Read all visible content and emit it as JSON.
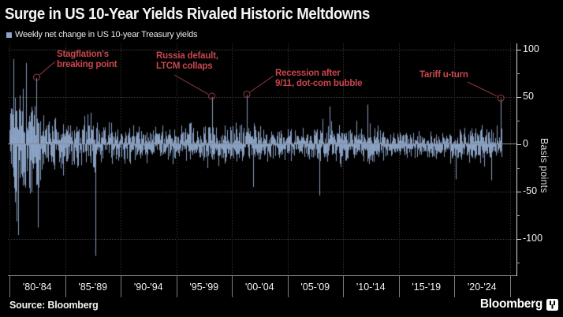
{
  "header": {
    "title": "Surge in US 10-Year Yields Rivaled Historic Meltdowns",
    "legend_label": "Weekly net change in US 10-year Treasury yields"
  },
  "chart_data": {
    "type": "bar",
    "title": "Surge in US 10-Year Yields Rivaled Historic Meltdowns",
    "series_name": "Weekly net change in US 10-year Treasury yields",
    "frequency": "weekly",
    "unit": "basis points",
    "y_axis_label": "Basis points",
    "y_ticks": [
      100,
      50,
      0,
      -50,
      -100
    ],
    "y_minor_ticks": [
      75,
      25,
      -25,
      -75,
      -125
    ],
    "ylim": [
      -140,
      106
    ],
    "x_range": [
      1980,
      2025
    ],
    "x_tick_labels": [
      "'80-'84",
      "'85-'89",
      "'90-'94",
      "'95-'99",
      "'00-'04",
      "'05-'09",
      "'10-'14",
      "'15-'19",
      "'20-'24"
    ],
    "grid": "dotted horizontal at 100/50/-50/-100, solid zero line, dotted vertical at 5-year boundaries",
    "legend_position": "top-left",
    "bar_color": "#8BA3C6",
    "annotation_text_color": "#C9474C",
    "annotation_line_color": "#96393E",
    "grid_color": "#3D3D3D",
    "axis_color": "#DCDCDC",
    "background_color": "#000000",
    "volatility_envelope_bp": [
      [
        1980,
        88
      ],
      [
        1981,
        84
      ],
      [
        1982,
        74
      ],
      [
        1983,
        46
      ],
      [
        1984,
        42
      ],
      [
        1985,
        38
      ],
      [
        1986,
        36
      ],
      [
        1987,
        48
      ],
      [
        1988,
        32
      ],
      [
        1990,
        30
      ],
      [
        1994,
        28
      ],
      [
        1998,
        30
      ],
      [
        2000,
        33
      ],
      [
        2002,
        32
      ],
      [
        2004,
        24
      ],
      [
        2007,
        22
      ],
      [
        2008,
        40
      ],
      [
        2009,
        36
      ],
      [
        2010,
        28
      ],
      [
        2013,
        28
      ],
      [
        2014,
        24
      ],
      [
        2016,
        20
      ],
      [
        2019,
        20
      ],
      [
        2020,
        32
      ],
      [
        2021,
        22
      ],
      [
        2022,
        34
      ],
      [
        2023,
        32
      ],
      [
        2024,
        27
      ],
      [
        2024.3,
        26
      ]
    ],
    "notable_spikes_bp": [
      [
        1980.35,
        90
      ],
      [
        1980.8,
        -96
      ],
      [
        1981.5,
        86
      ],
      [
        1982.45,
        70
      ],
      [
        1982.55,
        -88
      ],
      [
        1987.75,
        -118
      ],
      [
        1998.2,
        50
      ],
      [
        2001.35,
        52
      ],
      [
        2001.9,
        -45
      ],
      [
        2007.85,
        -54
      ],
      [
        2008.8,
        40
      ],
      [
        2012.2,
        42
      ],
      [
        2020.15,
        -37
      ],
      [
        2023.3,
        -38
      ],
      [
        2024.2,
        48
      ]
    ],
    "annotations": [
      {
        "lines": [
          "Stagflation's",
          "breaking point"
        ],
        "year": 1982.45,
        "value": 70
      },
      {
        "lines": [
          "Russia default,",
          "LTCM collaps"
        ],
        "year": 1998.2,
        "value": 50
      },
      {
        "lines": [
          "Recession after",
          "9/11, dot-com bubble"
        ],
        "year": 2001.35,
        "value": 52
      },
      {
        "lines": [
          "Tariff u-turn"
        ],
        "year": 2024.2,
        "value": 48
      }
    ]
  },
  "footer": {
    "source_label": "Source: Bloomberg",
    "brand": "Bloomberg",
    "brand_icon": "bloomberg-terminal-icon"
  }
}
